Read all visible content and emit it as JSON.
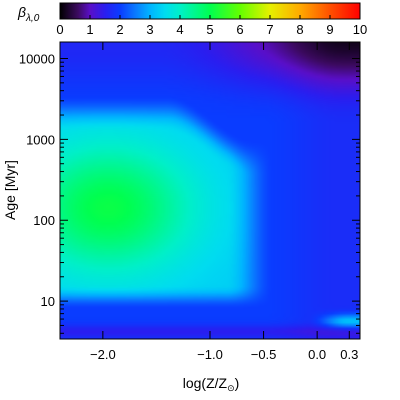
{
  "chart_data": {
    "type": "heatmap",
    "colorbar": {
      "label": "β",
      "label_subscript": "λ,0",
      "min": 0,
      "max": 10,
      "tick_labels": [
        "0",
        "1",
        "2",
        "3",
        "4",
        "5",
        "6",
        "7",
        "8",
        "9",
        "10"
      ]
    },
    "xlabel": {
      "main": "log(Z/Z",
      "sub": "⊙",
      "close": ")"
    },
    "ylabel": {
      "main": "Age ",
      "unit": "[Myr]"
    },
    "x_axis": {
      "range": [
        -2.4,
        0.4
      ],
      "ticks": [
        {
          "value": -2.0,
          "label": "−2.0"
        },
        {
          "value": -1.0,
          "label": "−1.0"
        },
        {
          "value": -0.5,
          "label": "−0.5"
        },
        {
          "value": 0.0,
          "label": "0.0"
        },
        {
          "value": 0.3,
          "label": "0.3"
        }
      ]
    },
    "y_axis": {
      "scale": "log",
      "range": [
        3.4,
        16000
      ],
      "ticks": [
        {
          "value": 10,
          "label": "10"
        },
        {
          "value": 100,
          "label": "100"
        },
        {
          "value": 1000,
          "label": "1000"
        },
        {
          "value": 10000,
          "label": "10000"
        }
      ]
    },
    "grid": false,
    "colormap": [
      {
        "v": 0.0,
        "color": "#000000"
      },
      {
        "v": 0.6,
        "color": "#3c0a60"
      },
      {
        "v": 1.0,
        "color": "#5a0fc8"
      },
      {
        "v": 1.5,
        "color": "#2a1ef0"
      },
      {
        "v": 2.0,
        "color": "#0a3cff"
      },
      {
        "v": 2.5,
        "color": "#0a78ff"
      },
      {
        "v": 3.0,
        "color": "#00b4ff"
      },
      {
        "v": 3.5,
        "color": "#00dcf0"
      },
      {
        "v": 4.0,
        "color": "#00f0c8"
      },
      {
        "v": 5.0,
        "color": "#00ff50"
      },
      {
        "v": 6.0,
        "color": "#64ff00"
      },
      {
        "v": 7.0,
        "color": "#e6f000"
      },
      {
        "v": 8.0,
        "color": "#ffaa00"
      },
      {
        "v": 9.0,
        "color": "#ff5000"
      },
      {
        "v": 10.0,
        "color": "#ff0000"
      }
    ]
  }
}
